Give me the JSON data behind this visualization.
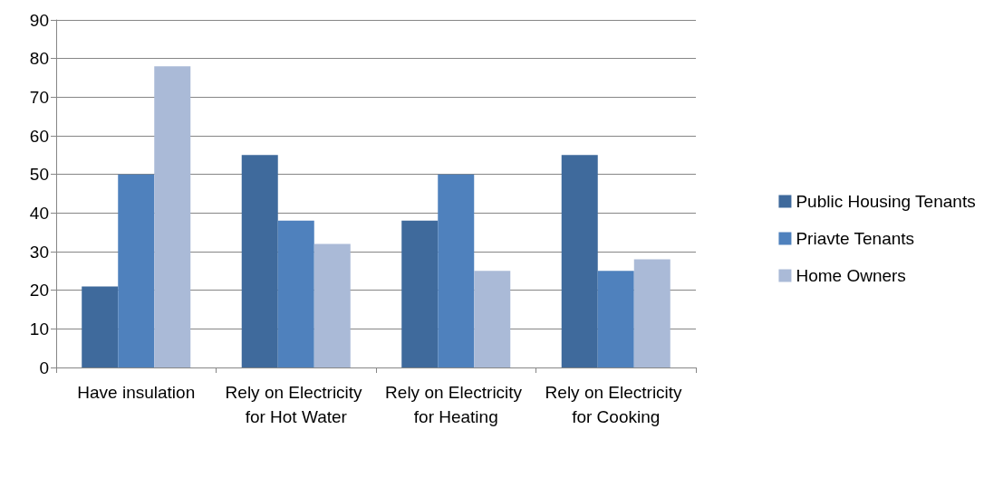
{
  "chart_data": {
    "type": "bar",
    "categories": [
      "Have insulation",
      "Rely on Electricity for Hot Water",
      "Rely on Electricity for Heating",
      "Rely on Electricity for Cooking"
    ],
    "series": [
      {
        "name": "Public Housing Tenants",
        "color": "#3f6a9c",
        "values": [
          21,
          55,
          38,
          55
        ]
      },
      {
        "name": "Priavte Tenants",
        "color": "#4f81bd",
        "values": [
          50,
          38,
          50,
          25
        ]
      },
      {
        "name": "Home Owners",
        "color": "#aabad7",
        "values": [
          78,
          32,
          25,
          28
        ]
      }
    ],
    "ylim": [
      0,
      90
    ],
    "yticks": [
      0,
      10,
      20,
      30,
      40,
      50,
      60,
      70,
      80,
      90
    ],
    "grid": "y",
    "legend": "right"
  }
}
